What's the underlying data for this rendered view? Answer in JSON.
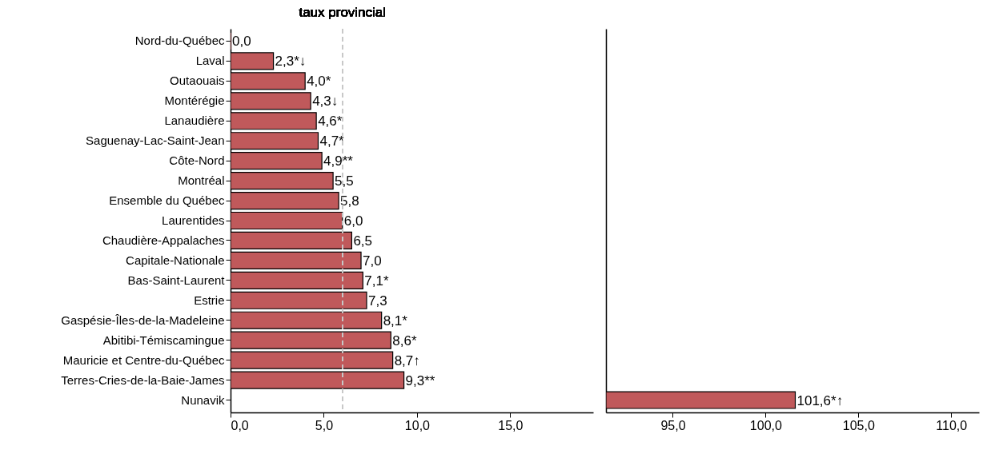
{
  "chart_data": [
    {
      "type": "bar",
      "orientation": "horizontal",
      "color": "#c0595b",
      "categories": [
        "Nord-du-Québec",
        "Laval",
        "Outaouais",
        "Montérégie",
        "Lanaudière",
        "Saguenay-Lac-Saint-Jean",
        "Côte-Nord",
        "Montréal",
        "Ensemble du Québec",
        "Laurentides",
        "Chaudière-Appalaches",
        "Capitale-Nationale",
        "Bas-Saint-Laurent",
        "Estrie",
        "Gaspésie-Îles-de-la-Madeleine",
        "Abitibi-Témiscamingue",
        "Mauricie et Centre-du-Québec",
        "Terres-Cries-de-la-Baie-James",
        "Nunavik"
      ],
      "values": [
        0.0,
        2.3,
        4.0,
        4.3,
        4.6,
        4.7,
        4.9,
        5.5,
        5.8,
        6.0,
        6.5,
        7.0,
        7.1,
        7.3,
        8.1,
        8.6,
        8.7,
        9.3,
        null
      ],
      "value_labels": [
        "0,0",
        "2,3*↓",
        "4,0*",
        "4,3↓",
        "4,6*",
        "4,7*",
        "4,9**",
        "5,5",
        "5,8",
        "6,0",
        "6,5",
        "7,0",
        "7,1*",
        "7,3",
        "8,1*",
        "8,6*",
        "8,7↑",
        "9,3**",
        null
      ],
      "xlim": [
        0,
        19.45
      ],
      "xticks": [
        {
          "value": 0,
          "label": "0,0"
        },
        {
          "value": 5,
          "label": "5,0"
        },
        {
          "value": 10,
          "label": "10,0"
        },
        {
          "value": 15,
          "label": "15,0"
        }
      ],
      "ref_lines": [
        {
          "axis": "x",
          "value": 6.0,
          "label": "taux provincial",
          "color": "#c8c8c8",
          "line_style": "dashed"
        }
      ]
    },
    {
      "type": "bar",
      "orientation": "horizontal",
      "color": "#c0595b",
      "tick_labels": "x",
      "categories": [
        null,
        null,
        null,
        null,
        null,
        null,
        null,
        null,
        null,
        null,
        null,
        null,
        null,
        null,
        null,
        null,
        null,
        null,
        null
      ],
      "values": [
        null,
        null,
        null,
        null,
        null,
        null,
        null,
        null,
        null,
        null,
        null,
        null,
        null,
        null,
        null,
        null,
        null,
        null,
        101.6
      ],
      "value_labels": [
        null,
        null,
        null,
        null,
        null,
        null,
        null,
        null,
        null,
        null,
        null,
        null,
        null,
        null,
        null,
        null,
        null,
        null,
        "101,6*↑"
      ],
      "xlim": [
        91.4,
        111.5
      ],
      "xticks": [
        {
          "value": 95,
          "label": "95,0"
        },
        {
          "value": 100,
          "label": "100,0"
        },
        {
          "value": 105,
          "label": "105,0"
        },
        {
          "value": 110,
          "label": "110,0"
        }
      ]
    }
  ]
}
